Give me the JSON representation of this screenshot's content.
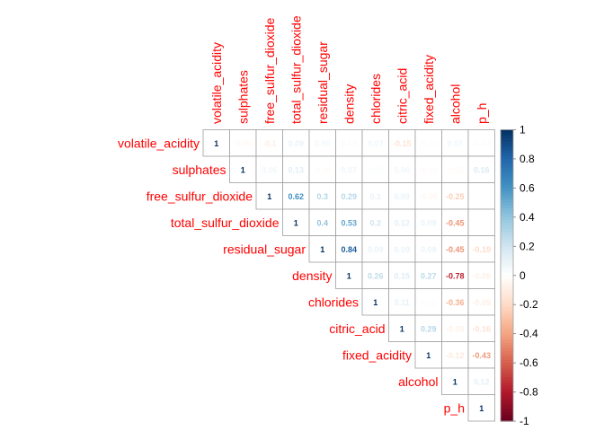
{
  "chart_data": {
    "type": "heatmap",
    "title": "",
    "variables": [
      "volatile_acidity",
      "sulphates",
      "free_sulfur_dioxide",
      "total_sulfur_dioxide",
      "residual_sugar",
      "density",
      "chlorides",
      "citric_acid",
      "fixed_acidity",
      "alcohol",
      "p_h"
    ],
    "matrix": [
      [
        1,
        -0.04,
        -0.1,
        0.09,
        0.06,
        0.03,
        0.07,
        -0.15,
        -0.02,
        0.07,
        -0.03
      ],
      [
        -0.04,
        1,
        0.06,
        0.13,
        -0.03,
        0.07,
        0.02,
        0.06,
        -0.02,
        -0.02,
        0.16
      ],
      [
        -0.1,
        0.06,
        1,
        0.62,
        0.3,
        0.29,
        0.1,
        0.09,
        -0.05,
        -0.25,
        0
      ],
      [
        0.09,
        0.13,
        0.62,
        1,
        0.4,
        0.53,
        0.2,
        0.12,
        0.09,
        -0.45,
        0
      ],
      [
        0.06,
        -0.03,
        0.3,
        0.4,
        1,
        0.84,
        0.09,
        0.09,
        0.09,
        -0.45,
        -0.19
      ],
      [
        0.03,
        0.07,
        0.29,
        0.53,
        0.84,
        1,
        0.26,
        0.15,
        0.27,
        -0.78,
        -0.09
      ],
      [
        0.07,
        0.02,
        0.1,
        0.2,
        0.09,
        0.26,
        1,
        0.11,
        0.02,
        -0.36,
        -0.09
      ],
      [
        -0.15,
        0.06,
        0.09,
        0.12,
        0.09,
        0.15,
        0.11,
        1,
        0.29,
        -0.08,
        -0.16
      ],
      [
        -0.02,
        -0.02,
        -0.05,
        0.09,
        0.09,
        0.27,
        0.02,
        0.29,
        1,
        -0.12,
        -0.43
      ],
      [
        0.07,
        -0.02,
        -0.25,
        -0.45,
        -0.45,
        -0.78,
        -0.36,
        -0.08,
        -0.12,
        1,
        0.12
      ],
      [
        -0.03,
        0.16,
        0,
        0,
        -0.19,
        -0.09,
        -0.09,
        -0.16,
        -0.43,
        0.12,
        1
      ]
    ],
    "display_triangle": "upper",
    "blank_cells": [
      [
        2,
        10
      ],
      [
        3,
        10
      ]
    ],
    "colorbar": {
      "range": [
        -1,
        1
      ],
      "ticks": [
        "1",
        "0.8",
        "0.6",
        "0.4",
        "0.2",
        "0",
        "-0.2",
        "-0.4",
        "-0.6",
        "-0.8",
        "-1"
      ],
      "colors": {
        "neg": "#67001f",
        "mid": "#ffffff",
        "pos": "#053061"
      }
    },
    "label_color": "#ff0000"
  }
}
